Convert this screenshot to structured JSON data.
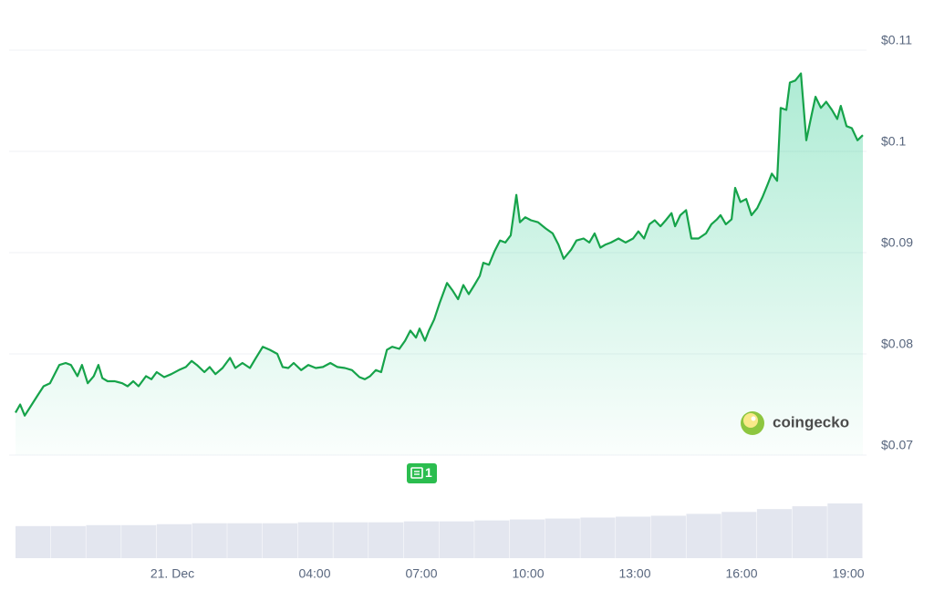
{
  "chart_data": {
    "type": "line",
    "x": [
      -4.41,
      -4.28,
      -4.15,
      -3.95,
      -3.77,
      -3.62,
      -3.44,
      -3.31,
      -3.18,
      -3.0,
      -2.85,
      -2.67,
      -2.54,
      -2.38,
      -2.21,
      -2.08,
      -1.97,
      -1.82,
      -1.62,
      -1.41,
      -1.26,
      -1.1,
      -0.95,
      -0.74,
      -0.59,
      -0.44,
      -0.23,
      -0.03,
      0.18,
      0.38,
      0.54,
      0.69,
      0.9,
      1.05,
      1.21,
      1.41,
      1.62,
      1.77,
      1.97,
      2.18,
      2.33,
      2.54,
      2.74,
      2.95,
      3.1,
      3.26,
      3.41,
      3.62,
      3.82,
      4.03,
      4.23,
      4.44,
      4.64,
      4.85,
      5.05,
      5.26,
      5.41,
      5.56,
      5.72,
      5.87,
      6.03,
      6.18,
      6.38,
      6.54,
      6.69,
      6.85,
      6.95,
      7.1,
      7.21,
      7.36,
      7.51,
      7.72,
      7.87,
      8.03,
      8.18,
      8.33,
      8.49,
      8.64,
      8.74,
      8.9,
      9.05,
      9.21,
      9.36,
      9.51,
      9.67,
      9.77,
      9.92,
      10.08,
      10.28,
      10.49,
      10.69,
      10.85,
      11.0,
      11.21,
      11.36,
      11.56,
      11.72,
      11.87,
      12.03,
      12.18,
      12.33,
      12.54,
      12.74,
      12.95,
      13.1,
      13.26,
      13.41,
      13.56,
      13.72,
      13.87,
      14.03,
      14.13,
      14.28,
      14.44,
      14.59,
      14.79,
      15.0,
      15.15,
      15.31,
      15.41,
      15.56,
      15.72,
      15.82,
      15.97,
      16.13,
      16.28,
      16.44,
      16.59,
      16.74,
      16.85,
      17.0,
      17.1,
      17.26,
      17.36,
      17.51,
      17.67,
      17.82,
      17.97,
      18.08,
      18.23,
      18.38,
      18.54,
      18.69,
      18.79,
      18.95,
      19.1,
      19.26,
      19.41
    ],
    "series": [
      {
        "color": "#16a34a",
        "values": [
          0.0742,
          0.075,
          0.0739,
          0.075,
          0.076,
          0.0768,
          0.0771,
          0.078,
          0.0789,
          0.0791,
          0.0789,
          0.0778,
          0.0789,
          0.0771,
          0.0778,
          0.0789,
          0.0776,
          0.0773,
          0.0773,
          0.0771,
          0.0768,
          0.0773,
          0.0768,
          0.0778,
          0.0775,
          0.0782,
          0.0777,
          0.078,
          0.0784,
          0.0787,
          0.0793,
          0.0789,
          0.0782,
          0.0787,
          0.078,
          0.0786,
          0.0796,
          0.0786,
          0.0791,
          0.0786,
          0.0795,
          0.0807,
          0.0804,
          0.08,
          0.0787,
          0.0786,
          0.0791,
          0.0784,
          0.0789,
          0.0786,
          0.0787,
          0.0791,
          0.0787,
          0.0786,
          0.0784,
          0.0777,
          0.0775,
          0.0778,
          0.0784,
          0.0782,
          0.0804,
          0.0807,
          0.0805,
          0.0813,
          0.0823,
          0.0816,
          0.0825,
          0.0813,
          0.0823,
          0.0834,
          0.085,
          0.087,
          0.0863,
          0.0854,
          0.0868,
          0.0859,
          0.0868,
          0.0877,
          0.089,
          0.0888,
          0.0901,
          0.0912,
          0.091,
          0.0917,
          0.0957,
          0.093,
          0.0935,
          0.0932,
          0.093,
          0.0924,
          0.0919,
          0.0908,
          0.0894,
          0.0903,
          0.0912,
          0.0914,
          0.091,
          0.0919,
          0.0905,
          0.0908,
          0.091,
          0.0914,
          0.091,
          0.0914,
          0.0921,
          0.0914,
          0.0928,
          0.0932,
          0.0926,
          0.0932,
          0.0939,
          0.0926,
          0.0937,
          0.0942,
          0.0914,
          0.0914,
          0.0919,
          0.0928,
          0.0933,
          0.0937,
          0.0928,
          0.0933,
          0.0964,
          0.095,
          0.0953,
          0.0937,
          0.0944,
          0.0955,
          0.0968,
          0.0978,
          0.0971,
          0.1043,
          0.1041,
          0.1068,
          0.107,
          0.1077,
          0.1011,
          0.1036,
          0.1054,
          0.1043,
          0.1049,
          0.1041,
          0.1032,
          0.1045,
          0.1025,
          0.1023,
          0.1011,
          0.1016
        ]
      }
    ],
    "xlim": [
      -4.41,
      19.41
    ],
    "xticks": [
      {
        "value": 0,
        "label": "21. Dec"
      },
      {
        "value": 4,
        "label": "04:00"
      },
      {
        "value": 7,
        "label": "07:00"
      },
      {
        "value": 10,
        "label": "10:00"
      },
      {
        "value": 13,
        "label": "13:00"
      },
      {
        "value": 16,
        "label": "16:00"
      },
      {
        "value": 19,
        "label": "19:00"
      }
    ],
    "ylim": [
      0.07,
      0.11
    ],
    "yticks": [
      {
        "value": 0.07,
        "label": "$0.07"
      },
      {
        "value": 0.08,
        "label": "$0.08"
      },
      {
        "value": 0.09,
        "label": "$0.09"
      },
      {
        "value": 0.1,
        "label": "$0.1"
      },
      {
        "value": 0.11,
        "label": "$0.11"
      }
    ],
    "grid": true,
    "volume": {
      "color": "#e3e6ef",
      "values": [
        34,
        34,
        35,
        35,
        36,
        37,
        37,
        37,
        38,
        38,
        38,
        39,
        39,
        40,
        41,
        42,
        43,
        44,
        45,
        47,
        49,
        52,
        55,
        58
      ]
    },
    "annotations": [
      {
        "x": 7,
        "label": "1"
      }
    ],
    "watermark": "coingecko"
  }
}
